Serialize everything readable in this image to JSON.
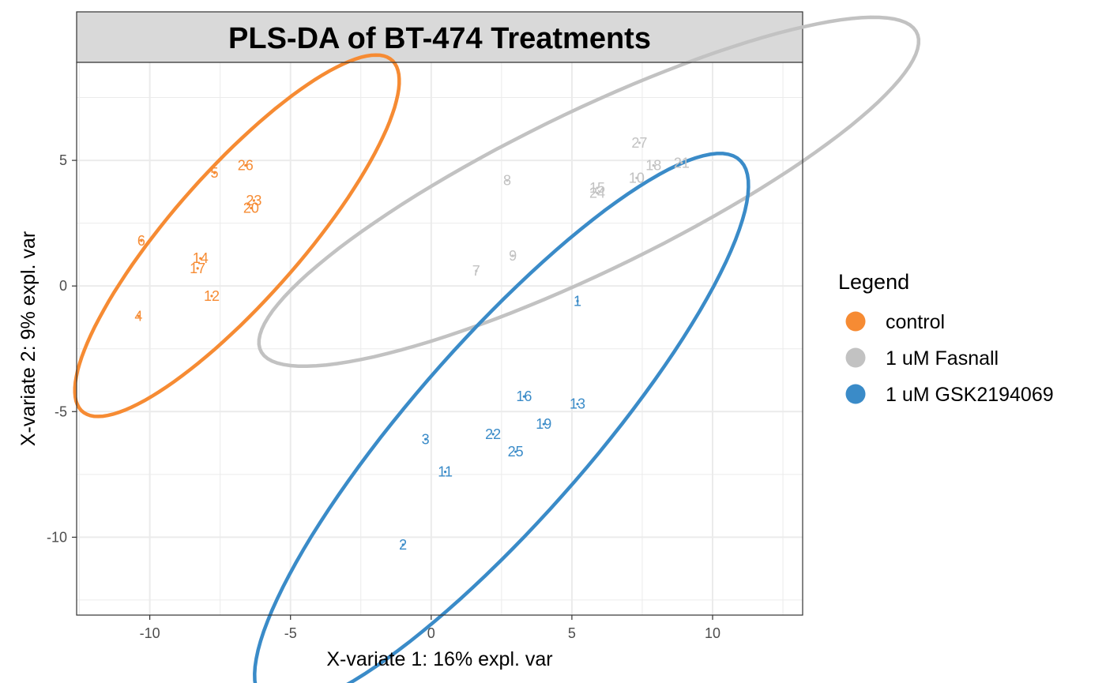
{
  "chart_data": {
    "type": "scatter",
    "title": "PLS-DA of BT-474 Treatments",
    "xlabel": "X-variate 1: 16% expl. var",
    "ylabel": "X-variate 2: 9% expl. var",
    "xlim": [
      -12.6,
      13.2
    ],
    "ylim": [
      -13.1,
      8.9
    ],
    "x_ticks": [
      -10,
      -5,
      0,
      5,
      10
    ],
    "x_tick_labels": [
      "-10",
      "-5",
      "0",
      "5",
      "10"
    ],
    "y_ticks": [
      -10,
      -5,
      0,
      5
    ],
    "y_tick_labels": [
      "-10",
      "-5",
      "0",
      "5"
    ],
    "grid": true,
    "legend": {
      "title": "Legend",
      "position": "right",
      "entries": [
        "control",
        "1 uM Fasnall",
        "1 uM GSK2194069"
      ]
    },
    "series": [
      {
        "name": "control",
        "color": "#F68B33",
        "ellipse": {
          "cx": -6.9,
          "cy": 2.0,
          "rx": 8.9,
          "ry": 2.4,
          "angle_deg": 52.3
        },
        "points": [
          {
            "label": "26",
            "x": -6.6,
            "y": 4.8
          },
          {
            "label": "5",
            "x": -7.7,
            "y": 4.5
          },
          {
            "label": "23",
            "x": -6.3,
            "y": 3.4
          },
          {
            "label": "20",
            "x": -6.4,
            "y": 3.1
          },
          {
            "label": "6",
            "x": -10.3,
            "y": 1.8
          },
          {
            "label": "14",
            "x": -8.2,
            "y": 1.1
          },
          {
            "label": "17",
            "x": -8.3,
            "y": 0.7
          },
          {
            "label": "12",
            "x": -7.8,
            "y": -0.4
          },
          {
            "label": "4",
            "x": -10.4,
            "y": -1.2
          }
        ]
      },
      {
        "name": "1 uM Fasnall",
        "color": "#C2C2C2",
        "ellipse": {
          "cx": 5.6,
          "cy": 3.75,
          "rx": 13.27,
          "ry": 3.1,
          "angle_deg": 28.8
        },
        "points": [
          {
            "label": "27",
            "x": 7.4,
            "y": 5.7
          },
          {
            "label": "18",
            "x": 7.9,
            "y": 4.8
          },
          {
            "label": "21",
            "x": 8.9,
            "y": 4.9
          },
          {
            "label": "10",
            "x": 7.3,
            "y": 4.3
          },
          {
            "label": "8",
            "x": 2.7,
            "y": 4.2
          },
          {
            "label": "15",
            "x": 5.9,
            "y": 3.9
          },
          {
            "label": "24",
            "x": 5.9,
            "y": 3.7
          },
          {
            "label": "9",
            "x": 2.9,
            "y": 1.2
          },
          {
            "label": "7",
            "x": 1.6,
            "y": 0.6
          }
        ]
      },
      {
        "name": "1 uM GSK2194069",
        "color": "#3A8BC8",
        "ellipse": {
          "cx": 2.5,
          "cy": -5.75,
          "rx": 13.7,
          "ry": 3.3,
          "angle_deg": 52.3
        },
        "points": [
          {
            "label": "1",
            "x": 5.2,
            "y": -0.6
          },
          {
            "label": "16",
            "x": 3.3,
            "y": -4.4
          },
          {
            "label": "13",
            "x": 5.2,
            "y": -4.7
          },
          {
            "label": "19",
            "x": 4.0,
            "y": -5.5
          },
          {
            "label": "3",
            "x": -0.2,
            "y": -6.1
          },
          {
            "label": "22",
            "x": 2.2,
            "y": -5.9
          },
          {
            "label": "25",
            "x": 3.0,
            "y": -6.6
          },
          {
            "label": "11",
            "x": 0.5,
            "y": -7.4
          },
          {
            "label": "2",
            "x": -1.0,
            "y": -10.3
          }
        ]
      }
    ]
  }
}
